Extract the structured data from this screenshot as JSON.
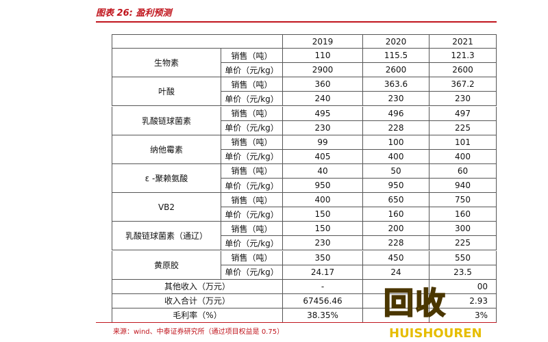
{
  "header": {
    "title": "图表 26: 盈利预测"
  },
  "table": {
    "years": [
      "2019",
      "2020",
      "2021"
    ],
    "groups": [
      {
        "name": "生物素",
        "rows": [
          {
            "metric": "销售（吨）",
            "values": [
              "110",
              "115.5",
              "121.3"
            ]
          },
          {
            "metric": "单价（元/kg）",
            "values": [
              "2900",
              "2600",
              "2600"
            ]
          }
        ]
      },
      {
        "name": "叶酸",
        "rows": [
          {
            "metric": "销售（吨）",
            "values": [
              "360",
              "363.6",
              "367.2"
            ]
          },
          {
            "metric": "单价（元/kg）",
            "values": [
              "240",
              "230",
              "230"
            ]
          }
        ]
      },
      {
        "name": "乳酸链球菌素",
        "rows": [
          {
            "metric": "销售（吨）",
            "values": [
              "495",
              "496",
              "497"
            ]
          },
          {
            "metric": "单价（元/kg）",
            "values": [
              "230",
              "228",
              "225"
            ]
          }
        ]
      },
      {
        "name": "纳他霉素",
        "rows": [
          {
            "metric": "销售（吨）",
            "values": [
              "99",
              "100",
              "101"
            ]
          },
          {
            "metric": "单价（元/kg）",
            "values": [
              "405",
              "400",
              "400"
            ]
          }
        ]
      },
      {
        "name": "ε -聚赖氨酸",
        "rows": [
          {
            "metric": "销售（吨）",
            "values": [
              "40",
              "50",
              "60"
            ]
          },
          {
            "metric": "单价（元/kg）",
            "values": [
              "950",
              "950",
              "940"
            ]
          }
        ]
      },
      {
        "name": "VB2",
        "rows": [
          {
            "metric": "销售（吨）",
            "values": [
              "400",
              "650",
              "750"
            ]
          },
          {
            "metric": "单价（元/kg）",
            "values": [
              "150",
              "160",
              "160"
            ]
          }
        ]
      },
      {
        "name": "乳酸链球菌素（通辽）",
        "rows": [
          {
            "metric": "销售（吨）",
            "values": [
              "150",
              "200",
              "300"
            ]
          },
          {
            "metric": "单价（元/kg）",
            "values": [
              "230",
              "228",
              "225"
            ]
          }
        ]
      },
      {
        "name": "黄原胶",
        "rows": [
          {
            "metric": "销售（吨）",
            "values": [
              "350",
              "450",
              "550"
            ]
          },
          {
            "metric": "单价（元/kg）",
            "values": [
              "24.17",
              "24",
              "23.5"
            ]
          }
        ]
      }
    ],
    "summary": [
      {
        "label": "其他收入（万元）",
        "values": [
          "-",
          null,
          "00"
        ]
      },
      {
        "label": "收入合计（万元）",
        "values": [
          "67456.46",
          null,
          "2.93"
        ]
      },
      {
        "label": "毛利率（%）",
        "values": [
          "38.35%",
          null,
          "3%"
        ]
      }
    ]
  },
  "source": "来源：wind、中泰证券研究所（通过项目权益是 0.75）",
  "watermark": {
    "chars": "回收",
    "text": "HUISHOUREN"
  }
}
